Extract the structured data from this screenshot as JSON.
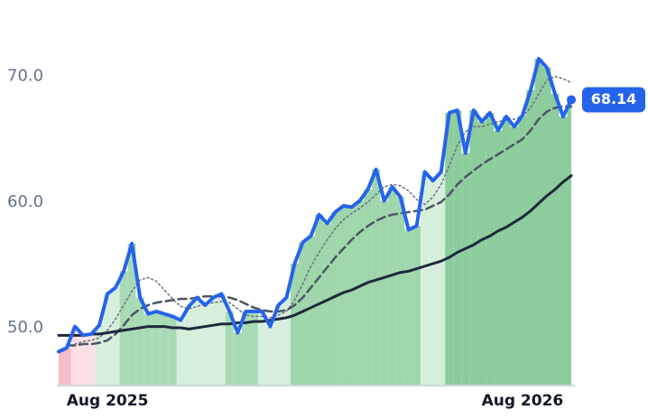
{
  "chart_data": {
    "type": "line",
    "categories": [
      null,
      null,
      null,
      null,
      null,
      null,
      "Aug 2025",
      null,
      null,
      null,
      null,
      null,
      null,
      null,
      null,
      null,
      null,
      null,
      null,
      null,
      null,
      null,
      null,
      null,
      null,
      null,
      null,
      null,
      null,
      null,
      null,
      null,
      null,
      null,
      null,
      null,
      null,
      null,
      null,
      null,
      null,
      null,
      null,
      null,
      null,
      null,
      null,
      null,
      null,
      null,
      null,
      null,
      null,
      null,
      null,
      null,
      null,
      "Aug 2026",
      null,
      null,
      null,
      null,
      null,
      null
    ],
    "ylim": [
      45.4,
      73.2
    ],
    "yticks": [
      {
        "value": 50,
        "label": "50.0"
      },
      {
        "value": 60,
        "label": "60.0"
      },
      {
        "value": 70,
        "label": "70.0"
      }
    ],
    "area_colors": [
      "#f8bcc6",
      "#f8bcc6",
      "#fde0e5",
      "#fde0e5",
      "#fde0e5",
      "#d6eedc",
      "#d6eedc",
      "#d6eedc",
      "#a8dab6",
      "#a8dab6",
      "#a8dab6",
      "#a8dab6",
      "#a8dab6",
      "#a8dab6",
      "#a8dab6",
      "#d6eedc",
      "#d6eedc",
      "#d6eedc",
      "#d6eedc",
      "#d6eedc",
      "#d6eedc",
      "#a8dab6",
      "#a8dab6",
      "#a8dab6",
      "#a8dab6",
      "#d6eedc",
      "#d6eedc",
      "#d6eedc",
      "#d6eedc",
      "#9fd6ac",
      "#9fd6ac",
      "#9fd6ac",
      "#9fd6ac",
      "#9fd6ac",
      "#9fd6ac",
      "#9fd6ac",
      "#9fd6ac",
      "#9fd6ac",
      "#9fd6ac",
      "#9fd6ac",
      "#9fd6ac",
      "#9fd6ac",
      "#9fd6ac",
      "#9fd6ac",
      "#9fd6ac",
      "#d6eedc",
      "#d6eedc",
      "#d6eedc",
      "#8ccc9d",
      "#8ccc9d",
      "#8ccc9d",
      "#8ccc9d",
      "#8ccc9d",
      "#8ccc9d",
      "#8ccc9d",
      "#8ccc9d",
      "#8ccc9d",
      "#8ccc9d",
      "#8ccc9d",
      "#8ccc9d",
      "#8ccc9d",
      "#8ccc9d",
      "#8ccc9d",
      "#8ccc9d"
    ],
    "series": [
      {
        "color": "#2563eb",
        "style": "solid",
        "width": 4,
        "area": true,
        "values": [
          48.1,
          48.4,
          50.1,
          49.4,
          49.5,
          50.2,
          52.7,
          53.2,
          54.5,
          56.7,
          52.4,
          51.1,
          51.3,
          51.1,
          50.9,
          50.6,
          51.7,
          52.4,
          51.8,
          52.4,
          52.7,
          51.3,
          49.6,
          51.3,
          51.3,
          51.3,
          50.1,
          51.8,
          52.4,
          55.1,
          56.8,
          57.3,
          59.0,
          58.3,
          59.2,
          59.7,
          59.6,
          60.1,
          61.0,
          62.6,
          60.1,
          61.2,
          60.4,
          57.8,
          58.1,
          62.4,
          61.7,
          62.4,
          67.1,
          67.3,
          63.9,
          67.3,
          66.4,
          67.1,
          65.7,
          66.8,
          66.0,
          66.9,
          68.9,
          71.4,
          70.7,
          68.6,
          66.8,
          68.14
        ],
        "value_labels": [
          null,
          null,
          null,
          null,
          null,
          null,
          null,
          null,
          null,
          null,
          null,
          null,
          null,
          null,
          null,
          null,
          null,
          null,
          null,
          null,
          null,
          null,
          null,
          null,
          null,
          null,
          null,
          null,
          null,
          null,
          null,
          null,
          null,
          null,
          null,
          null,
          null,
          null,
          null,
          null,
          null,
          null,
          null,
          null,
          null,
          null,
          null,
          null,
          null,
          null,
          null,
          null,
          null,
          null,
          null,
          null,
          null,
          null,
          null,
          null,
          null,
          null,
          null,
          "68.14"
        ]
      },
      {
        "color": "#1e293b",
        "style": "solid",
        "width": 3,
        "values": [
          49.4,
          49.4,
          49.4,
          49.4,
          49.5,
          49.5,
          49.6,
          49.7,
          49.8,
          49.9,
          50.0,
          50.1,
          50.1,
          50.1,
          50.0,
          50.0,
          49.9,
          50.0,
          50.1,
          50.2,
          50.3,
          50.3,
          50.4,
          50.4,
          50.5,
          50.5,
          50.6,
          50.7,
          50.8,
          51.0,
          51.3,
          51.6,
          51.9,
          52.2,
          52.5,
          52.8,
          53.0,
          53.3,
          53.6,
          53.8,
          54.0,
          54.2,
          54.4,
          54.5,
          54.7,
          54.9,
          55.1,
          55.3,
          55.6,
          56.0,
          56.3,
          56.6,
          57.0,
          57.3,
          57.7,
          58.0,
          58.4,
          58.8,
          59.3,
          59.9,
          60.5,
          61.0,
          61.6,
          62.1
        ]
      },
      {
        "color": "#4b5563",
        "style": "dashed",
        "width": 2.5,
        "values": [
          null,
          48.6,
          48.6,
          48.7,
          48.7,
          48.8,
          49.0,
          49.5,
          50.2,
          51.0,
          51.5,
          51.8,
          52.0,
          52.1,
          52.2,
          52.3,
          52.3,
          52.4,
          52.5,
          52.5,
          52.5,
          52.4,
          52.2,
          51.9,
          51.6,
          51.4,
          51.3,
          51.3,
          51.4,
          51.8,
          52.4,
          53.2,
          54.0,
          54.8,
          55.6,
          56.3,
          57.0,
          57.6,
          58.1,
          58.5,
          58.8,
          59.0,
          59.1,
          59.2,
          59.3,
          59.4,
          59.7,
          60.0,
          60.6,
          61.4,
          62.0,
          62.5,
          63.0,
          63.4,
          63.8,
          64.2,
          64.6,
          65.0,
          65.7,
          66.6,
          67.2,
          67.5,
          67.6,
          67.6
        ]
      },
      {
        "color": "#6b7280",
        "style": "dotted",
        "width": 1.5,
        "values": [
          null,
          null,
          48.7,
          48.9,
          49.0,
          49.2,
          49.8,
          50.7,
          51.8,
          52.9,
          53.8,
          54.0,
          53.7,
          53.0,
          52.3,
          51.7,
          51.5,
          51.7,
          51.9,
          52.0,
          52.1,
          52.0,
          51.5,
          51.0,
          50.9,
          50.9,
          50.8,
          51.0,
          51.3,
          52.2,
          53.5,
          54.9,
          56.0,
          57.0,
          57.9,
          58.6,
          59.1,
          59.5,
          60.0,
          60.6,
          61.2,
          61.4,
          61.3,
          60.9,
          60.2,
          59.8,
          60.4,
          61.4,
          62.9,
          64.5,
          65.6,
          66.0,
          66.0,
          66.2,
          66.4,
          66.5,
          66.6,
          66.8,
          67.5,
          68.6,
          69.7,
          70.0,
          69.8,
          69.5
        ]
      }
    ]
  }
}
